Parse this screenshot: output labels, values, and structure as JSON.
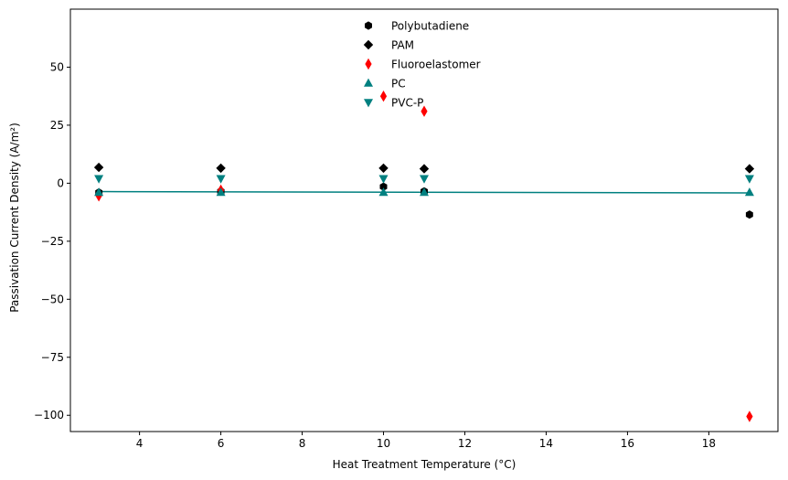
{
  "chart_data": {
    "type": "scatter",
    "xlabel": "Heat Treatment Temperature (°C)",
    "ylabel": "Passivation Current Density (A/m²)",
    "xlim": [
      2.3,
      19.7
    ],
    "ylim": [
      -107,
      75
    ],
    "x_ticks": [
      4,
      6,
      8,
      10,
      12,
      14,
      16,
      18
    ],
    "y_ticks": [
      -100,
      -75,
      -50,
      -25,
      0,
      25,
      50
    ],
    "x_tick_labels": [
      "4",
      "6",
      "8",
      "10",
      "12",
      "14",
      "16",
      "18"
    ],
    "y_tick_labels": [
      "−100",
      "−75",
      "−50",
      "−25",
      "0",
      "25",
      "50"
    ],
    "grid": false,
    "legend_position": "top-center",
    "series": [
      {
        "name": "Polybutadiene",
        "marker": "hexagon",
        "color": "#000000",
        "x": [
          3,
          6,
          10,
          11,
          19
        ],
        "y": [
          -4,
          -3.5,
          -1.5,
          -3.5,
          -13.5
        ]
      },
      {
        "name": "PAM",
        "marker": "diamond",
        "color": "#000000",
        "x": [
          3,
          6,
          10,
          11,
          19
        ],
        "y": [
          6.8,
          6.5,
          6.5,
          6.2,
          6.2
        ]
      },
      {
        "name": "Fluoroelastomer",
        "marker": "thin-diamond",
        "color": "#ff0000",
        "x": [
          3,
          6,
          10,
          11,
          19
        ],
        "y": [
          -5.5,
          -3,
          37.5,
          31,
          -100.5
        ]
      },
      {
        "name": "PC",
        "marker": "triangle-up",
        "color": "#008080",
        "x": [
          3,
          6,
          10,
          11,
          19
        ],
        "y": [
          -4,
          -4,
          -4,
          -4,
          -4
        ]
      },
      {
        "name": "PVC-P",
        "marker": "triangle-down",
        "color": "#008080",
        "x": [
          3,
          6,
          10,
          11,
          19
        ],
        "y": [
          2,
          2,
          2,
          2,
          2
        ]
      }
    ],
    "trend_line": {
      "color": "#008080",
      "x": [
        3,
        19
      ],
      "y": [
        -3.6,
        -4.2
      ]
    }
  }
}
